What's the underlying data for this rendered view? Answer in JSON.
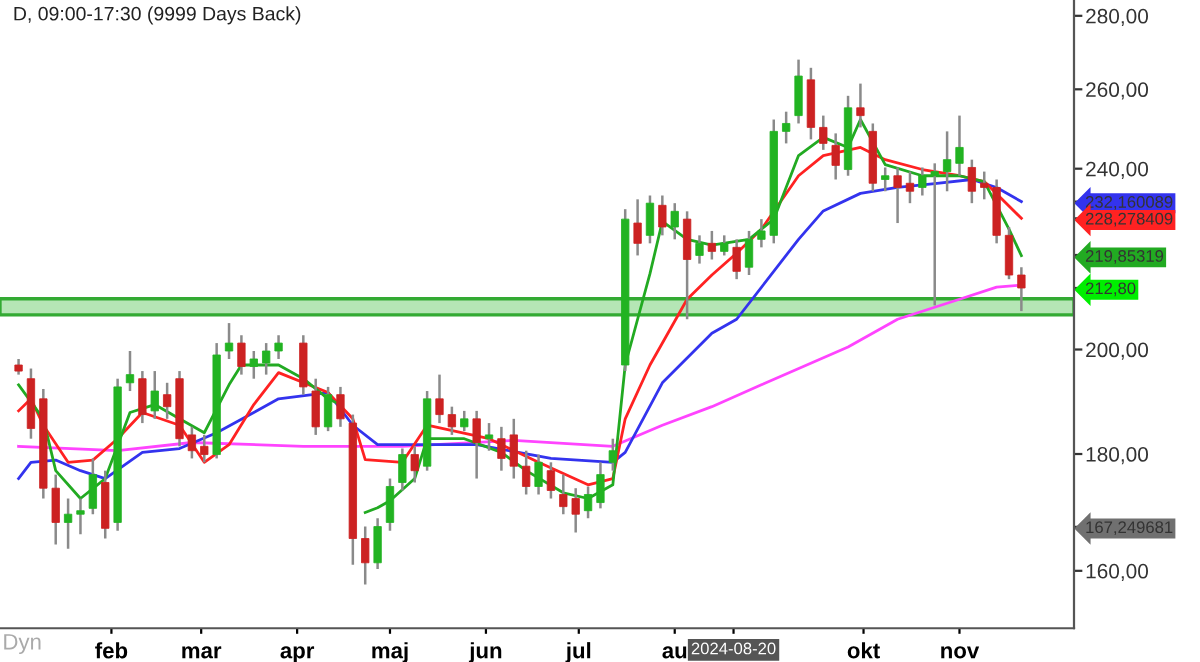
{
  "chart_data": {
    "type": "candlestick",
    "title": "D, 09:00-17:30 (9999 Days Back)",
    "x": [
      "2024-01-02",
      "2024-01-06",
      "2024-01-10",
      "2024-01-14",
      "2024-01-18",
      "2024-01-22",
      "2024-01-26",
      "2024-01-30",
      "2024-02-03",
      "2024-02-07",
      "2024-02-11",
      "2024-02-15",
      "2024-02-19",
      "2024-02-23",
      "2024-02-27",
      "2024-03-02",
      "2024-03-06",
      "2024-03-10",
      "2024-03-14",
      "2024-03-18",
      "2024-03-22",
      "2024-03-26",
      "2024-04-03",
      "2024-04-07",
      "2024-04-11",
      "2024-04-15",
      "2024-04-19",
      "2024-04-23",
      "2024-04-27",
      "2024-05-01",
      "2024-05-05",
      "2024-05-09",
      "2024-05-13",
      "2024-05-17",
      "2024-05-21",
      "2024-05-25",
      "2024-05-29",
      "2024-06-02",
      "2024-06-06",
      "2024-06-10",
      "2024-06-14",
      "2024-06-18",
      "2024-06-22",
      "2024-06-26",
      "2024-06-30",
      "2024-07-04",
      "2024-07-08",
      "2024-07-12",
      "2024-07-16",
      "2024-07-20",
      "2024-07-24",
      "2024-07-28",
      "2024-08-01",
      "2024-08-05",
      "2024-08-09",
      "2024-08-13",
      "2024-08-17",
      "2024-08-21",
      "2024-08-25",
      "2024-08-29",
      "2024-09-02",
      "2024-09-06",
      "2024-09-10",
      "2024-09-14",
      "2024-09-18",
      "2024-09-22",
      "2024-09-26",
      "2024-09-30",
      "2024-10-04",
      "2024-10-08",
      "2024-10-12",
      "2024-10-16",
      "2024-10-20",
      "2024-10-24",
      "2024-10-28",
      "2024-11-01",
      "2024-11-05",
      "2024-11-09",
      "2024-11-13",
      "2024-11-17",
      "2024-11-21"
    ],
    "ohlc": [
      [
        196.9,
        198.1,
        195.0,
        195.7
      ],
      [
        194.2,
        196.2,
        182.8,
        184.7
      ],
      [
        190.3,
        192.2,
        172.1,
        173.9
      ],
      [
        173.9,
        176.3,
        164.3,
        168.0
      ],
      [
        168.0,
        172.1,
        163.6,
        169.4
      ],
      [
        169.4,
        172.1,
        166.0,
        170.0
      ],
      [
        170.4,
        179.2,
        169.4,
        176.3
      ],
      [
        174.9,
        177.0,
        165.3,
        167.0
      ],
      [
        168.0,
        194.2,
        166.6,
        192.6
      ],
      [
        193.4,
        199.7,
        191.8,
        195.0
      ],
      [
        194.2,
        195.7,
        185.7,
        187.3
      ],
      [
        188.0,
        195.7,
        186.5,
        191.8
      ],
      [
        191.1,
        193.4,
        186.5,
        188.8
      ],
      [
        194.2,
        195.7,
        181.4,
        182.8
      ],
      [
        183.5,
        185.0,
        179.2,
        180.6
      ],
      [
        181.4,
        183.5,
        178.5,
        179.9
      ],
      [
        179.9,
        201.3,
        179.2,
        198.9
      ],
      [
        199.7,
        205.4,
        198.1,
        201.3
      ],
      [
        201.3,
        202.9,
        195.0,
        196.6
      ],
      [
        196.6,
        199.7,
        194.2,
        198.1
      ],
      [
        197.3,
        201.3,
        195.0,
        199.7
      ],
      [
        199.7,
        202.9,
        198.1,
        201.3
      ],
      [
        201.3,
        202.9,
        191.1,
        192.6
      ],
      [
        191.8,
        194.2,
        183.5,
        185.0
      ],
      [
        185.0,
        192.6,
        184.2,
        191.1
      ],
      [
        191.1,
        192.6,
        185.0,
        186.5
      ],
      [
        185.7,
        187.3,
        161.0,
        165.3
      ],
      [
        165.3,
        167.3,
        157.8,
        161.3
      ],
      [
        161.3,
        168.7,
        160.3,
        167.3
      ],
      [
        168.0,
        175.6,
        166.6,
        174.2
      ],
      [
        174.9,
        181.0,
        173.5,
        179.9
      ],
      [
        179.9,
        181.4,
        174.9,
        177.0
      ],
      [
        177.8,
        191.8,
        177.0,
        190.3
      ],
      [
        190.3,
        195.0,
        185.7,
        187.3
      ],
      [
        187.3,
        188.8,
        183.5,
        185.0
      ],
      [
        185.0,
        188.0,
        184.2,
        186.5
      ],
      [
        186.5,
        188.0,
        175.6,
        182.1
      ],
      [
        182.8,
        185.7,
        180.6,
        183.5
      ],
      [
        182.8,
        185.0,
        177.0,
        179.2
      ],
      [
        183.5,
        186.5,
        175.6,
        177.8
      ],
      [
        177.8,
        180.6,
        172.8,
        174.2
      ],
      [
        174.2,
        179.9,
        172.8,
        178.5
      ],
      [
        177.0,
        178.5,
        172.1,
        173.5
      ],
      [
        172.8,
        176.3,
        169.4,
        170.7
      ],
      [
        172.1,
        173.9,
        166.3,
        169.4
      ],
      [
        170.0,
        174.2,
        168.7,
        172.8
      ],
      [
        171.4,
        178.5,
        170.4,
        176.3
      ],
      [
        178.5,
        182.8,
        177.0,
        180.6
      ],
      [
        196.9,
        230.4,
        195.7,
        228.1
      ],
      [
        227.2,
        232.7,
        219.9,
        222.6
      ],
      [
        224.4,
        233.6,
        222.6,
        231.8
      ],
      [
        231.3,
        233.6,
        224.4,
        226.3
      ],
      [
        226.3,
        231.8,
        223.5,
        229.9
      ],
      [
        228.1,
        229.9,
        206.2,
        219.0
      ],
      [
        219.9,
        224.4,
        218.1,
        222.6
      ],
      [
        222.6,
        225.4,
        219.0,
        220.8
      ],
      [
        220.8,
        224.4,
        219.9,
        222.6
      ],
      [
        221.7,
        223.5,
        214.7,
        216.4
      ],
      [
        217.3,
        225.4,
        215.6,
        223.5
      ],
      [
        223.5,
        228.1,
        221.7,
        225.4
      ],
      [
        224.4,
        252.2,
        222.6,
        249.2
      ],
      [
        249.2,
        254.2,
        246.2,
        251.2
      ],
      [
        253.2,
        267.9,
        251.2,
        263.5
      ],
      [
        262.5,
        265.7,
        247.2,
        250.2
      ],
      [
        250.2,
        253.2,
        244.6,
        246.2
      ],
      [
        245.7,
        248.7,
        237.4,
        240.8
      ],
      [
        239.8,
        258.3,
        238.3,
        255.2
      ],
      [
        255.2,
        261.5,
        250.2,
        253.2
      ],
      [
        249.2,
        251.2,
        234.6,
        236.5
      ],
      [
        237.4,
        240.3,
        234.6,
        238.3
      ],
      [
        238.3,
        240.3,
        227.2,
        235.5
      ],
      [
        236.5,
        239.3,
        231.8,
        234.6
      ],
      [
        235.5,
        240.3,
        233.6,
        238.3
      ],
      [
        238.3,
        241.3,
        209.1,
        239.3
      ],
      [
        239.3,
        249.2,
        234.6,
        242.2
      ],
      [
        241.3,
        253.2,
        238.3,
        245.2
      ],
      [
        240.3,
        242.2,
        231.8,
        234.6
      ],
      [
        236.5,
        239.3,
        232.7,
        235.5
      ],
      [
        235.5,
        237.4,
        222.6,
        224.4
      ],
      [
        224.4,
        226.3,
        214.7,
        215.6
      ],
      [
        215.6,
        217.3,
        207.9,
        212.8
      ]
    ],
    "series": [
      {
        "type": "line",
        "color": "#ff44ff",
        "x": [
          "2024-01-02",
          "2024-02-03",
          "2024-02-27",
          "2024-04-03",
          "2024-05-05",
          "2024-06-10",
          "2024-07-12",
          "2024-07-28",
          "2024-08-13",
          "2024-08-29",
          "2024-09-26",
          "2024-10-12",
          "2024-11-01",
          "2024-11-13",
          "2024-11-21"
        ],
        "values": [
          181.4,
          180.6,
          182.1,
          181.4,
          181.4,
          182.5,
          181.4,
          185.3,
          188.8,
          193.0,
          200.5,
          206.2,
          210.4,
          213.0,
          213.4
        ]
      },
      {
        "type": "line",
        "color": "#3333ee",
        "x": [
          "2024-01-02",
          "2024-01-06",
          "2024-01-14",
          "2024-01-22",
          "2024-01-30",
          "2024-02-11",
          "2024-02-23",
          "2024-03-06",
          "2024-03-18",
          "2024-03-26",
          "2024-04-11",
          "2024-04-19",
          "2024-04-27",
          "2024-05-13",
          "2024-05-29",
          "2024-06-22",
          "2024-07-12",
          "2024-07-16",
          "2024-07-28",
          "2024-08-13",
          "2024-08-21",
          "2024-09-10",
          "2024-09-18",
          "2024-09-30",
          "2024-10-12",
          "2024-10-24",
          "2024-11-05",
          "2024-11-13",
          "2024-11-21"
        ],
        "values": [
          175.6,
          178.5,
          178.9,
          177.0,
          175.6,
          180.3,
          181.0,
          183.9,
          187.7,
          190.3,
          191.5,
          185.3,
          181.7,
          181.7,
          181.7,
          179.2,
          178.5,
          180.3,
          193.4,
          203.3,
          206.2,
          223.5,
          230.0,
          234.1,
          235.5,
          236.4,
          237.4,
          235.5,
          232.160089
        ]
      },
      {
        "type": "line",
        "color": "#ff2222",
        "x": [
          "2024-01-02",
          "2024-01-06",
          "2024-01-10",
          "2024-01-18",
          "2024-01-26",
          "2024-02-03",
          "2024-02-11",
          "2024-02-23",
          "2024-03-02",
          "2024-03-10",
          "2024-03-18",
          "2024-03-26",
          "2024-04-11",
          "2024-04-19",
          "2024-04-23",
          "2024-05-05",
          "2024-05-13",
          "2024-06-02",
          "2024-06-18",
          "2024-07-04",
          "2024-07-12",
          "2024-07-16",
          "2024-07-24",
          "2024-08-05",
          "2024-08-13",
          "2024-08-21",
          "2024-08-29",
          "2024-09-10",
          "2024-09-18",
          "2024-09-30",
          "2024-10-08",
          "2024-10-20",
          "2024-11-01",
          "2024-11-09",
          "2024-11-21"
        ],
        "values": [
          188.0,
          190.3,
          185.3,
          178.5,
          178.9,
          182.8,
          187.7,
          185.3,
          178.5,
          181.7,
          189.2,
          195.4,
          191.5,
          186.5,
          179.0,
          178.5,
          185.3,
          182.8,
          178.5,
          174.5,
          175.6,
          186.5,
          196.9,
          210.4,
          215.6,
          220.4,
          225.8,
          238.3,
          243.2,
          245.2,
          242.2,
          239.8,
          238.3,
          236.9,
          228.278409
        ]
      },
      {
        "type": "line",
        "color": "#22aa22",
        "x": [
          "2024-01-02",
          "2024-01-10",
          "2024-01-14",
          "2024-01-22",
          "2024-01-30",
          "2024-02-07",
          "2024-02-15",
          "2024-02-23",
          "2024-03-02",
          "2024-03-10",
          "2024-03-14",
          "2024-03-26",
          "2024-04-03",
          "2024-04-11",
          "2024-04-15",
          "2024-04-19",
          "2024-04-23",
          "2024-04-27",
          "2024-05-01",
          "2024-05-09",
          "2024-05-13",
          "2024-05-25",
          "2024-06-06",
          "2024-06-14",
          "2024-06-26",
          "2024-07-04",
          "2024-07-12",
          "2024-07-16",
          "2024-07-24",
          "2024-07-28",
          "2024-08-05",
          "2024-08-13",
          "2024-08-25",
          "2024-09-02",
          "2024-09-10",
          "2024-09-18",
          "2024-09-26",
          "2024-09-30",
          "2024-10-08",
          "2024-10-20",
          "2024-11-01",
          "2024-11-09",
          "2024-11-17",
          "2024-11-21"
        ],
        "values": [
          193.0,
          186.5,
          177.0,
          172.1,
          175.6,
          187.7,
          189.2,
          186.5,
          183.9,
          193.0,
          196.9,
          196.9,
          194.2,
          190.3,
          189.2,
          null,
          169.7,
          170.5,
          171.7,
          175.6,
          182.8,
          182.8,
          180.3,
          177.0,
          173.1,
          172.1,
          174.5,
          196.9,
          215.9,
          227.6,
          223.5,
          222.2,
          223.5,
          228.1,
          243.2,
          247.7,
          245.2,
          252.2,
          241.0,
          238.3,
          238.3,
          236.9,
          225.8,
          219.85319
        ]
      }
    ],
    "bands": [
      {
        "axis": "y",
        "from": 207.1,
        "to": 210.5,
        "color": "#b5e6b5"
      }
    ],
    "log": "y",
    "xlim": [
      "2023-12-27",
      "2024-12-08"
    ],
    "xticks": [
      {
        "value": "2024-02-01",
        "label": "feb"
      },
      {
        "value": "2024-03-01",
        "label": "mar"
      },
      {
        "value": "2024-04-01",
        "label": "apr"
      },
      {
        "value": "2024-05-01",
        "label": "maj"
      },
      {
        "value": "2024-06-01",
        "label": "jun"
      },
      {
        "value": "2024-07-01",
        "label": "jul"
      },
      {
        "value": "2024-08-01",
        "label": "au"
      },
      {
        "value": "2024-08-20",
        "label": "2024-08-20"
      },
      {
        "value": "2024-10-01",
        "label": "okt"
      },
      {
        "value": "2024-11-01",
        "label": "nov"
      }
    ],
    "ylim": [
      151,
      284.5
    ],
    "yticks": [
      {
        "value": 160,
        "label": "160,00"
      },
      {
        "value": 180,
        "label": "180,00"
      },
      {
        "value": 200,
        "label": "200,00"
      },
      {
        "value": 220,
        "label": null
      },
      {
        "value": 240,
        "label": "240,00"
      },
      {
        "value": 260,
        "label": "260,00"
      },
      {
        "value": 280,
        "label": "280,00"
      },
      {
        "value": 232.160089,
        "label": "232,160089"
      },
      {
        "value": 228.278409,
        "label": "228,278409"
      },
      {
        "value": 219.85319,
        "label": "219,85319"
      },
      {
        "value": 212.8,
        "label": "212,80"
      },
      {
        "value": 167.249681,
        "label": "167,249681"
      }
    ],
    "annotations": [
      "Dyn"
    ],
    "grid": false,
    "legend": false
  }
}
